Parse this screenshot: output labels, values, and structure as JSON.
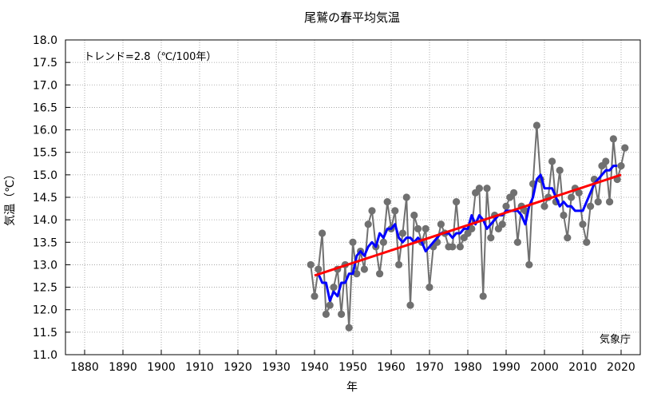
{
  "chart_data": {
    "type": "line",
    "title": "尾鷲の春平均気温",
    "xlabel": "年",
    "ylabel": "気温（℃）",
    "annotation": "トレンド=2.8（℃/100年）",
    "source_label": "気象庁",
    "xlim": [
      1875,
      2025
    ],
    "ylim": [
      11.0,
      18.0
    ],
    "x_ticks": [
      1880,
      1890,
      1900,
      1910,
      1920,
      1930,
      1940,
      1950,
      1960,
      1970,
      1980,
      1990,
      2000,
      2010,
      2020
    ],
    "y_ticks": [
      "11.0",
      "11.5",
      "12.0",
      "12.5",
      "13.0",
      "13.5",
      "14.0",
      "14.5",
      "15.0",
      "15.5",
      "16.0",
      "16.5",
      "17.0",
      "17.5",
      "18.0"
    ],
    "grid": true,
    "colors": {
      "annual": "#707070",
      "moving_average": "#0000ff",
      "trend": "#ff0000"
    },
    "series": [
      {
        "role": "annual",
        "x": [
          1939,
          1940,
          1941,
          1942,
          1943,
          1944,
          1945,
          1946,
          1947,
          1948,
          1949,
          1950,
          1951,
          1952,
          1953,
          1954,
          1955,
          1956,
          1957,
          1958,
          1959,
          1960,
          1961,
          1962,
          1963,
          1964,
          1965,
          1966,
          1967,
          1968,
          1969,
          1970,
          1971,
          1972,
          1973,
          1974,
          1975,
          1976,
          1977,
          1978,
          1979,
          1980,
          1981,
          1982,
          1983,
          1984,
          1985,
          1986,
          1987,
          1988,
          1989,
          1990,
          1991,
          1992,
          1993,
          1994,
          1995,
          1996,
          1997,
          1998,
          1999,
          2000,
          2001,
          2002,
          2003,
          2004,
          2005,
          2006,
          2007,
          2008,
          2009,
          2010,
          2011,
          2012,
          2013,
          2014,
          2015,
          2016,
          2017,
          2018,
          2019,
          2020,
          2021
        ],
        "values": [
          13.0,
          12.3,
          12.9,
          13.7,
          11.9,
          12.1,
          12.5,
          12.9,
          11.9,
          13.0,
          11.6,
          13.5,
          12.8,
          13.3,
          12.9,
          13.9,
          14.2,
          13.4,
          12.8,
          13.5,
          14.4,
          13.8,
          14.2,
          13.0,
          13.7,
          14.5,
          12.1,
          14.1,
          13.8,
          13.5,
          13.8,
          12.5,
          13.4,
          13.5,
          13.9,
          13.7,
          13.4,
          13.4,
          14.4,
          13.4,
          13.6,
          13.7,
          13.8,
          14.6,
          14.7,
          12.3,
          14.7,
          13.6,
          14.1,
          13.8,
          13.9,
          14.3,
          14.5,
          14.6,
          13.5,
          14.3,
          14.2,
          13.0,
          14.8,
          16.1,
          14.9,
          14.3,
          14.5,
          15.3,
          14.4,
          15.1,
          14.1,
          13.6,
          14.5,
          14.7,
          14.6,
          13.9,
          13.5,
          14.3,
          14.9,
          14.4,
          15.2,
          15.3,
          14.4,
          15.8,
          14.9,
          15.2,
          15.6
        ]
      },
      {
        "role": "moving_average",
        "x": [
          1941,
          1942,
          1943,
          1944,
          1945,
          1946,
          1947,
          1948,
          1949,
          1950,
          1951,
          1952,
          1953,
          1954,
          1955,
          1956,
          1957,
          1958,
          1959,
          1960,
          1961,
          1962,
          1963,
          1964,
          1965,
          1966,
          1967,
          1968,
          1969,
          1970,
          1971,
          1972,
          1973,
          1974,
          1975,
          1976,
          1977,
          1978,
          1979,
          1980,
          1981,
          1982,
          1983,
          1984,
          1985,
          1986,
          1987,
          1988,
          1989,
          1990,
          1991,
          1992,
          1993,
          1994,
          1995,
          1996,
          1997,
          1998,
          1999,
          2000,
          2001,
          2002,
          2003,
          2004,
          2005,
          2006,
          2007,
          2008,
          2009,
          2010,
          2011,
          2012,
          2013,
          2014,
          2015,
          2016,
          2017,
          2018,
          2019
        ],
        "values": [
          12.8,
          12.6,
          12.6,
          12.2,
          12.4,
          12.3,
          12.6,
          12.6,
          12.8,
          12.8,
          13.2,
          13.3,
          13.2,
          13.4,
          13.5,
          13.4,
          13.7,
          13.6,
          13.8,
          13.8,
          13.9,
          13.6,
          13.5,
          13.6,
          13.6,
          13.5,
          13.6,
          13.5,
          13.3,
          13.4,
          13.5,
          13.6,
          13.7,
          13.7,
          13.7,
          13.6,
          13.7,
          13.7,
          13.8,
          13.8,
          14.1,
          13.9,
          14.1,
          14.0,
          13.8,
          13.9,
          14.0,
          14.1,
          14.1,
          14.2,
          14.2,
          14.2,
          14.2,
          14.1,
          13.9,
          14.3,
          14.5,
          14.9,
          15.0,
          14.7,
          14.7,
          14.7,
          14.5,
          14.3,
          14.4,
          14.3,
          14.3,
          14.2,
          14.2,
          14.2,
          14.4,
          14.6,
          14.8,
          14.9,
          15.0,
          15.1,
          15.1,
          15.2,
          15.2
        ]
      },
      {
        "role": "trend",
        "x": [
          1940,
          2020
        ],
        "values": [
          12.76,
          15.0
        ]
      }
    ]
  }
}
